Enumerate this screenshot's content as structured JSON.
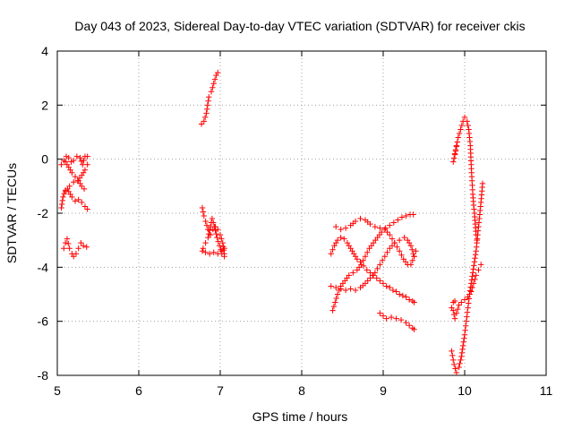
{
  "chart_data": {
    "type": "scatter",
    "title": "Day 043 of 2023, Sidereal Day-to-day VTEC variation (SDTVAR) for receiver ckis",
    "xlabel": "GPS time / hours",
    "ylabel": "SDTVAR / TECUs",
    "xlim": [
      5,
      11
    ],
    "ylim": [
      -8,
      4
    ],
    "xticks": [
      "5",
      "6",
      "7",
      "8",
      "9",
      "10",
      "11"
    ],
    "yticks": [
      "-8",
      "-6",
      "-4",
      "-2",
      "0",
      "2",
      "4"
    ],
    "grid": true,
    "marker": "+",
    "series_color": "#ff0000",
    "segments": [
      [
        [
          5.05,
          -1.8
        ],
        [
          5.07,
          -1.4
        ],
        [
          5.1,
          -1.15
        ],
        [
          5.14,
          -1.2
        ],
        [
          5.18,
          -1.4
        ],
        [
          5.22,
          -1.55
        ],
        [
          5.26,
          -1.5
        ],
        [
          5.3,
          -1.6
        ],
        [
          5.34,
          -1.75
        ],
        [
          5.37,
          -1.85
        ]
      ],
      [
        [
          5.05,
          -0.2
        ],
        [
          5.08,
          -0.05
        ],
        [
          5.11,
          0.1
        ],
        [
          5.14,
          0.05
        ],
        [
          5.17,
          -0.1
        ],
        [
          5.2,
          -0.05
        ],
        [
          5.24,
          0.1
        ],
        [
          5.28,
          0.05
        ],
        [
          5.31,
          -0.2
        ],
        [
          5.34,
          0.1
        ],
        [
          5.37,
          0.1
        ]
      ],
      [
        [
          5.1,
          -1.2
        ],
        [
          5.15,
          -1.0
        ],
        [
          5.2,
          -0.85
        ],
        [
          5.25,
          -0.8
        ],
        [
          5.3,
          -0.6
        ],
        [
          5.34,
          -0.4
        ],
        [
          5.37,
          -0.2
        ]
      ],
      [
        [
          5.1,
          -0.1
        ],
        [
          5.14,
          -0.3
        ],
        [
          5.18,
          -0.5
        ],
        [
          5.22,
          -0.65
        ],
        [
          5.26,
          -0.8
        ],
        [
          5.3,
          -1.0
        ],
        [
          5.33,
          -1.1
        ]
      ],
      [
        [
          5.08,
          -3.3
        ],
        [
          5.1,
          -3.1
        ],
        [
          5.12,
          -2.95
        ],
        [
          5.15,
          -3.3
        ],
        [
          5.18,
          -3.5
        ],
        [
          5.2,
          -3.6
        ],
        [
          5.23,
          -3.5
        ],
        [
          5.26,
          -3.3
        ],
        [
          5.29,
          -3.1
        ],
        [
          5.32,
          -3.2
        ],
        [
          5.36,
          -3.25
        ]
      ],
      [
        [
          6.77,
          1.3
        ],
        [
          6.8,
          1.4
        ],
        [
          6.83,
          1.7
        ],
        [
          6.86,
          2.3
        ],
        [
          6.89,
          2.5
        ],
        [
          6.92,
          2.8
        ],
        [
          6.95,
          3.1
        ],
        [
          6.97,
          3.2
        ]
      ],
      [
        [
          6.78,
          -1.8
        ],
        [
          6.8,
          -2.1
        ],
        [
          6.82,
          -2.3
        ],
        [
          6.85,
          -2.6
        ],
        [
          6.88,
          -2.8
        ],
        [
          6.91,
          -2.6
        ],
        [
          6.94,
          -2.5
        ],
        [
          6.97,
          -2.6
        ],
        [
          7.0,
          -2.8
        ],
        [
          7.03,
          -3.1
        ],
        [
          7.05,
          -3.5
        ]
      ],
      [
        [
          6.79,
          -3.3
        ],
        [
          6.82,
          -3.1
        ],
        [
          6.85,
          -2.9
        ],
        [
          6.88,
          -2.5
        ],
        [
          6.9,
          -2.2
        ],
        [
          6.93,
          -2.5
        ],
        [
          6.96,
          -2.9
        ],
        [
          6.99,
          -3.2
        ],
        [
          7.02,
          -3.5
        ],
        [
          7.05,
          -3.6
        ]
      ],
      [
        [
          6.78,
          -3.4
        ],
        [
          6.82,
          -3.45
        ],
        [
          6.87,
          -3.5
        ],
        [
          6.92,
          -3.45
        ],
        [
          6.97,
          -3.5
        ],
        [
          7.02,
          -3.4
        ],
        [
          7.05,
          -3.3
        ]
      ],
      [
        [
          8.36,
          -3.5
        ],
        [
          8.4,
          -3.2
        ],
        [
          8.44,
          -3.0
        ],
        [
          8.48,
          -2.9
        ],
        [
          8.52,
          -2.95
        ],
        [
          8.56,
          -3.1
        ],
        [
          8.6,
          -3.3
        ],
        [
          8.64,
          -3.5
        ],
        [
          8.68,
          -3.7
        ],
        [
          8.72,
          -3.8
        ],
        [
          8.76,
          -3.95
        ],
        [
          8.8,
          -4.1
        ],
        [
          8.84,
          -4.2
        ],
        [
          8.88,
          -4.3
        ],
        [
          8.92,
          -4.4
        ],
        [
          8.96,
          -4.5
        ],
        [
          9.0,
          -4.6
        ],
        [
          9.04,
          -4.7
        ],
        [
          9.08,
          -4.75
        ],
        [
          9.12,
          -4.85
        ],
        [
          9.16,
          -4.9
        ],
        [
          9.2,
          -5.0
        ],
        [
          9.24,
          -5.05
        ],
        [
          9.28,
          -5.1
        ],
        [
          9.32,
          -5.2
        ],
        [
          9.36,
          -5.25
        ],
        [
          9.38,
          -5.3
        ]
      ],
      [
        [
          8.38,
          -5.6
        ],
        [
          8.41,
          -5.3
        ],
        [
          8.44,
          -5.0
        ],
        [
          8.48,
          -4.7
        ],
        [
          8.53,
          -4.5
        ],
        [
          8.58,
          -4.3
        ],
        [
          8.63,
          -4.2
        ],
        [
          8.68,
          -4.1
        ],
        [
          8.73,
          -3.9
        ],
        [
          8.78,
          -3.6
        ],
        [
          8.83,
          -3.3
        ],
        [
          8.88,
          -3.1
        ],
        [
          8.93,
          -2.9
        ],
        [
          8.98,
          -2.7
        ],
        [
          9.03,
          -2.55
        ],
        [
          9.08,
          -2.45
        ],
        [
          9.13,
          -2.35
        ],
        [
          9.18,
          -2.25
        ],
        [
          9.23,
          -2.15
        ],
        [
          9.28,
          -2.1
        ],
        [
          9.33,
          -2.05
        ],
        [
          9.37,
          -2.05
        ]
      ],
      [
        [
          8.42,
          -2.5
        ],
        [
          8.48,
          -2.6
        ],
        [
          8.54,
          -2.55
        ],
        [
          8.6,
          -2.45
        ],
        [
          8.66,
          -2.3
        ],
        [
          8.72,
          -2.2
        ],
        [
          8.78,
          -2.25
        ],
        [
          8.84,
          -2.4
        ],
        [
          8.9,
          -2.5
        ],
        [
          8.96,
          -2.55
        ],
        [
          9.02,
          -2.6
        ],
        [
          9.08,
          -2.8
        ],
        [
          9.14,
          -3.1
        ],
        [
          9.2,
          -3.4
        ],
        [
          9.25,
          -3.7
        ],
        [
          9.3,
          -3.9
        ],
        [
          9.34,
          -3.9
        ],
        [
          9.38,
          -3.6
        ],
        [
          9.4,
          -3.4
        ]
      ],
      [
        [
          8.36,
          -4.7
        ],
        [
          8.42,
          -4.75
        ],
        [
          8.48,
          -4.8
        ],
        [
          8.54,
          -4.85
        ],
        [
          8.6,
          -4.8
        ],
        [
          8.66,
          -4.85
        ],
        [
          8.72,
          -4.75
        ],
        [
          8.78,
          -4.6
        ],
        [
          8.84,
          -4.4
        ],
        [
          8.9,
          -4.2
        ],
        [
          8.96,
          -3.9
        ],
        [
          9.02,
          -3.6
        ],
        [
          9.08,
          -3.3
        ],
        [
          9.14,
          -3.1
        ],
        [
          9.2,
          -3.0
        ],
        [
          9.26,
          -2.9
        ],
        [
          9.3,
          -3.0
        ],
        [
          9.34,
          -3.2
        ],
        [
          9.37,
          -3.5
        ],
        [
          9.38,
          -3.6
        ]
      ],
      [
        [
          8.96,
          -5.7
        ],
        [
          9.0,
          -5.8
        ],
        [
          9.04,
          -5.9
        ],
        [
          9.1,
          -5.85
        ],
        [
          9.16,
          -5.9
        ],
        [
          9.22,
          -5.95
        ],
        [
          9.28,
          -6.05
        ],
        [
          9.32,
          -6.15
        ],
        [
          9.36,
          -6.25
        ],
        [
          9.38,
          -6.3
        ]
      ],
      [
        [
          9.86,
          -0.1
        ],
        [
          9.89,
          0.3
        ],
        [
          9.92,
          0.8
        ],
        [
          9.95,
          1.1
        ],
        [
          9.98,
          1.4
        ],
        [
          10.0,
          1.55
        ],
        [
          10.03,
          1.4
        ],
        [
          10.05,
          1.1
        ],
        [
          10.07,
          0.5
        ],
        [
          10.08,
          -0.2
        ],
        [
          10.09,
          -0.8
        ],
        [
          10.1,
          -1.3
        ],
        [
          10.11,
          -1.7
        ],
        [
          10.12,
          -2.0
        ],
        [
          10.13,
          -2.4
        ],
        [
          10.14,
          -2.8
        ],
        [
          10.15,
          -3.0
        ]
      ],
      [
        [
          9.84,
          -7.1
        ],
        [
          9.87,
          -7.6
        ],
        [
          9.9,
          -7.9
        ],
        [
          9.93,
          -7.7
        ],
        [
          9.96,
          -7.3
        ],
        [
          9.98,
          -6.9
        ],
        [
          10.0,
          -6.5
        ],
        [
          10.02,
          -6.0
        ],
        [
          10.04,
          -5.5
        ],
        [
          10.06,
          -5.0
        ],
        [
          10.08,
          -4.6
        ],
        [
          10.1,
          -4.2
        ],
        [
          10.12,
          -3.8
        ],
        [
          10.14,
          -3.4
        ],
        [
          10.16,
          -2.8
        ],
        [
          10.18,
          -2.2
        ],
        [
          10.2,
          -1.6
        ],
        [
          10.22,
          -0.9
        ]
      ],
      [
        [
          9.86,
          -5.6
        ],
        [
          9.88,
          -5.9
        ],
        [
          9.9,
          -5.7
        ],
        [
          9.93,
          -5.4
        ],
        [
          9.96,
          -5.3
        ],
        [
          10.0,
          -5.2
        ],
        [
          10.04,
          -5.1
        ],
        [
          10.08,
          -4.9
        ],
        [
          10.11,
          -4.6
        ],
        [
          10.14,
          -4.3
        ],
        [
          10.17,
          -4.1
        ],
        [
          10.2,
          -3.9
        ]
      ],
      [
        [
          9.84,
          -5.5
        ],
        [
          9.86,
          -5.3
        ],
        [
          9.88,
          -5.25
        ]
      ],
      [
        [
          9.88,
          0.2
        ],
        [
          9.9,
          0.5
        ]
      ]
    ]
  }
}
